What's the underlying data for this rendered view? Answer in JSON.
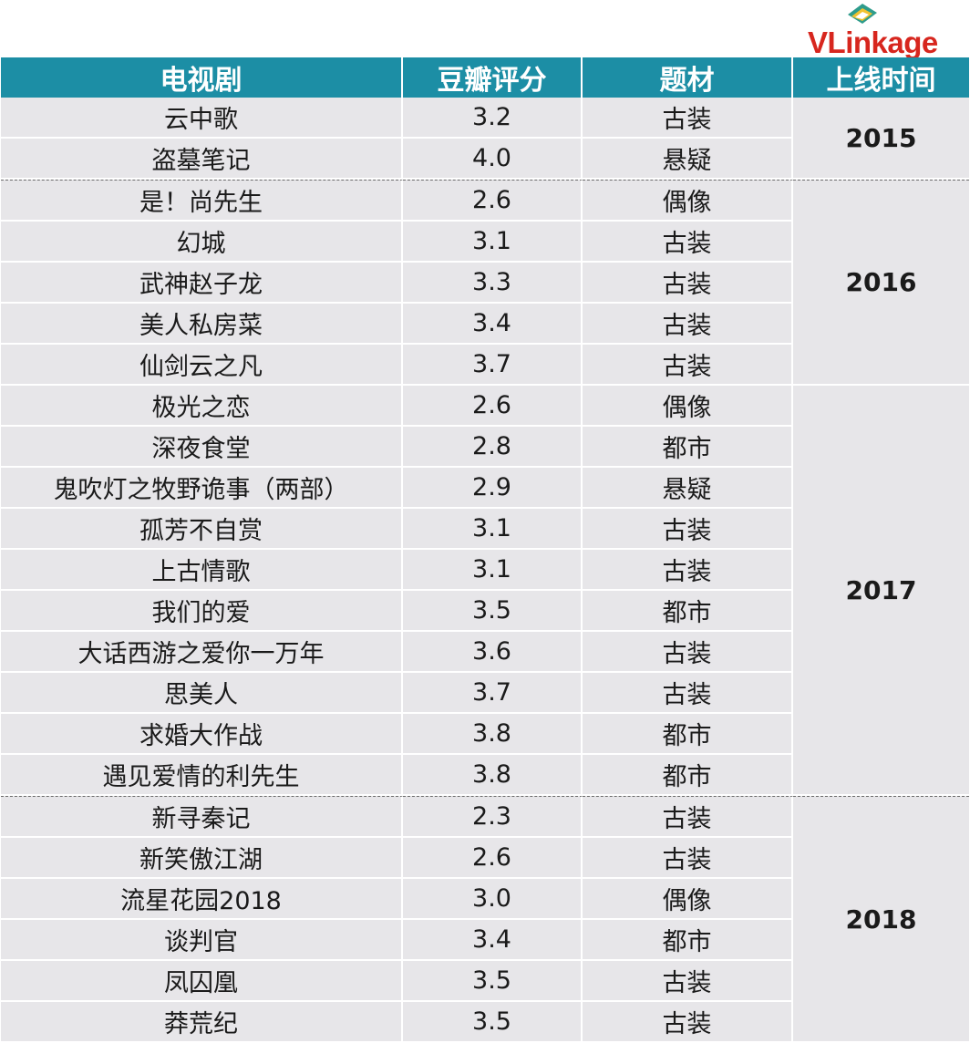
{
  "logo": {
    "text_v": "V",
    "text_l": "L",
    "text_rest": "inkage",
    "brand_color": "#d7261e"
  },
  "headers": [
    "电视剧",
    "豆瓣评分",
    "题材",
    "上线时间"
  ],
  "colors": {
    "header_bg": "#1c8ea5",
    "row_bg": "#e7e6e9"
  },
  "groups": [
    {
      "year": "2015",
      "rows": [
        [
          "云中歌",
          "3.2",
          "古装"
        ],
        [
          "盗墓笔记",
          "4.0",
          "悬疑"
        ]
      ]
    },
    {
      "year": "2016",
      "rows": [
        [
          "是！尚先生",
          "2.6",
          "偶像"
        ],
        [
          "幻城",
          "3.1",
          "古装"
        ],
        [
          "武神赵子龙",
          "3.3",
          "古装"
        ],
        [
          "美人私房菜",
          "3.4",
          "古装"
        ],
        [
          "仙剑云之凡",
          "3.7",
          "古装"
        ]
      ]
    },
    {
      "year": "2017",
      "rows": [
        [
          "极光之恋",
          "2.6",
          "偶像"
        ],
        [
          "深夜食堂",
          "2.8",
          "都市"
        ],
        [
          "鬼吹灯之牧野诡事（两部）",
          "2.9",
          "悬疑"
        ],
        [
          "孤芳不自赏",
          "3.1",
          "古装"
        ],
        [
          "上古情歌",
          "3.1",
          "古装"
        ],
        [
          "我们的爱",
          "3.5",
          "都市"
        ],
        [
          "大话西游之爱你一万年",
          "3.6",
          "古装"
        ],
        [
          "思美人",
          "3.7",
          "古装"
        ],
        [
          "求婚大作战",
          "3.8",
          "都市"
        ],
        [
          "遇见爱情的利先生",
          "3.8",
          "都市"
        ]
      ]
    },
    {
      "year": "2018",
      "rows": [
        [
          "新寻秦记",
          "2.3",
          "古装"
        ],
        [
          "新笑傲江湖",
          "2.6",
          "古装"
        ],
        [
          "流星花园2018",
          "3.0",
          "偶像"
        ],
        [
          "谈判官",
          "3.4",
          "都市"
        ],
        [
          "凤囚凰",
          "3.5",
          "古装"
        ],
        [
          "莽荒纪",
          "3.5",
          "古装"
        ]
      ]
    }
  ]
}
